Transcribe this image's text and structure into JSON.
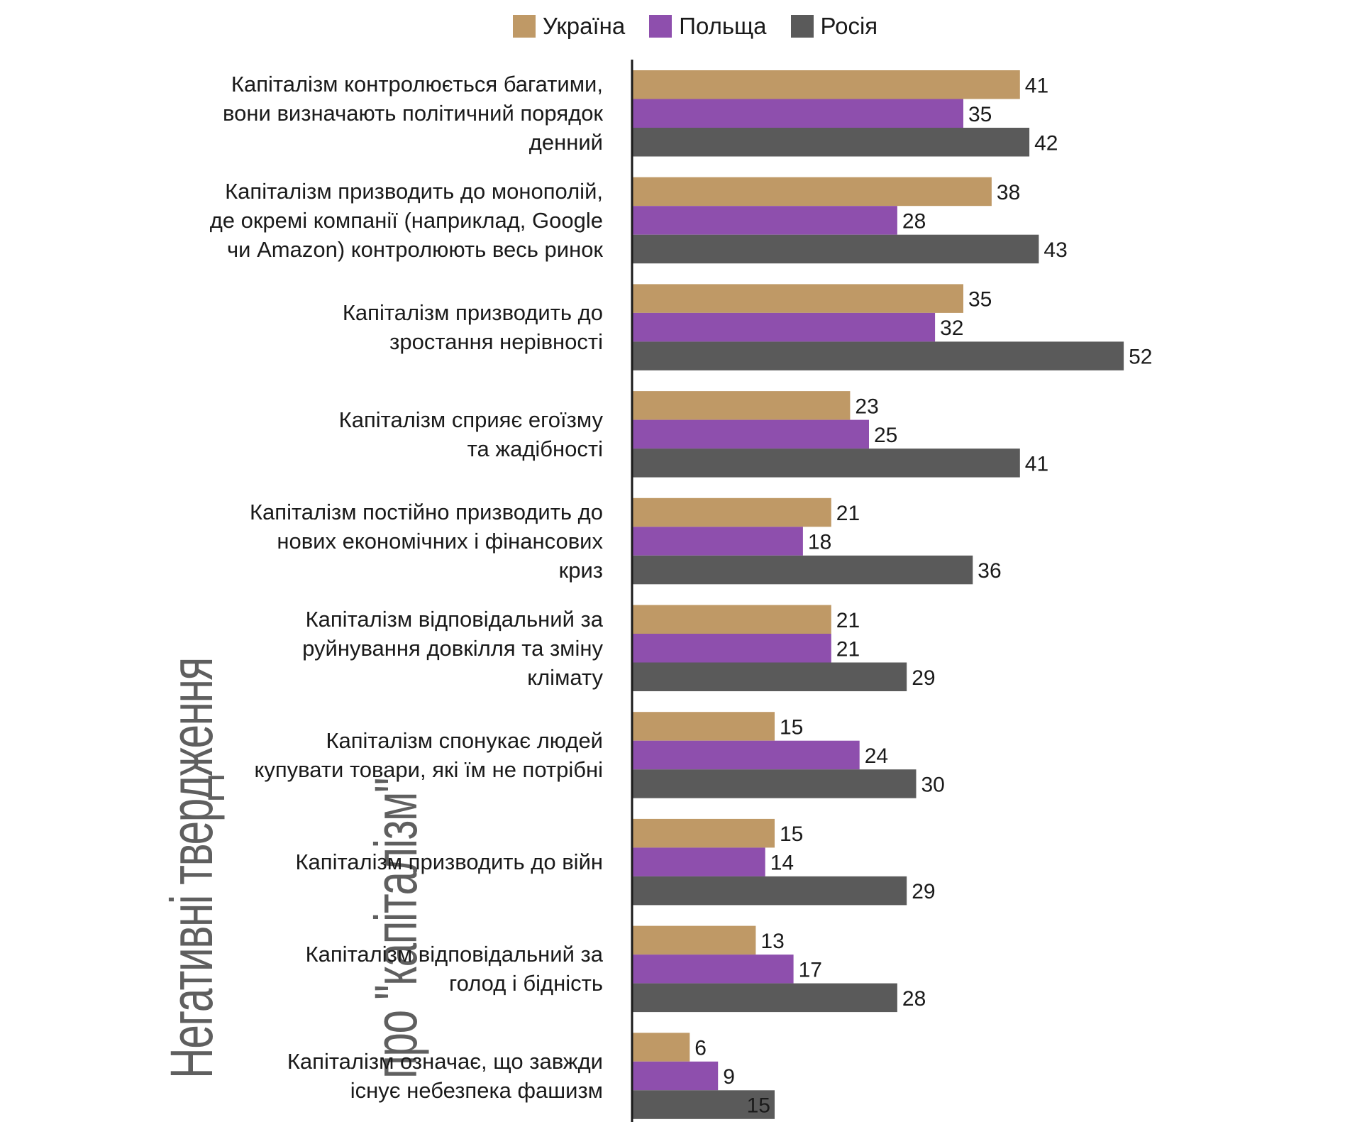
{
  "side_title": {
    "line1": "Негативні твердження",
    "line2": "про \"капіталізм\""
  },
  "legend": [
    {
      "label": "Україна",
      "color": "#bf9966"
    },
    {
      "label": "Польща",
      "color": "#8e4fad"
    },
    {
      "label": "Росія",
      "color": "#5a5a5a"
    }
  ],
  "chart_data": {
    "type": "bar",
    "orientation": "horizontal",
    "legend_position": "top-center",
    "categories": [
      "Капіталізм контролюється багатими, вони визначають політичний порядок денний",
      "Капіталізм призводить до монополій, де окремі компанії (наприклад, Google чи Amazon) контролюють весь ринок",
      "Капіталізм призводить до зростання нерівності",
      "Капіталізм сприяє егоїзму та жадібності",
      "Капіталізм постійно призводить до нових економічних і фінансових криз",
      "Капіталізм відповідальний за руйнування довкілля та зміну клімату",
      "Капіталізм спонукає людей купувати товари, які їм не потрібні",
      "Капіталізм призводить до війн",
      "Капіталізм відповідальний за голод і бідність",
      "Капіталізм означає, що завжди існує небезпека фашизм"
    ],
    "series": [
      {
        "name": "Україна",
        "color": "#bf9966",
        "values": [
          41,
          38,
          35,
          23,
          21,
          21,
          15,
          15,
          13,
          6
        ]
      },
      {
        "name": "Польща",
        "color": "#8e4fad",
        "values": [
          35,
          28,
          32,
          25,
          18,
          21,
          24,
          14,
          17,
          9
        ]
      },
      {
        "name": "Росія",
        "color": "#5a5a5a",
        "values": [
          42,
          43,
          52,
          41,
          36,
          29,
          30,
          29,
          28,
          15
        ]
      }
    ],
    "xlim": [
      0,
      60
    ],
    "grid": false
  }
}
